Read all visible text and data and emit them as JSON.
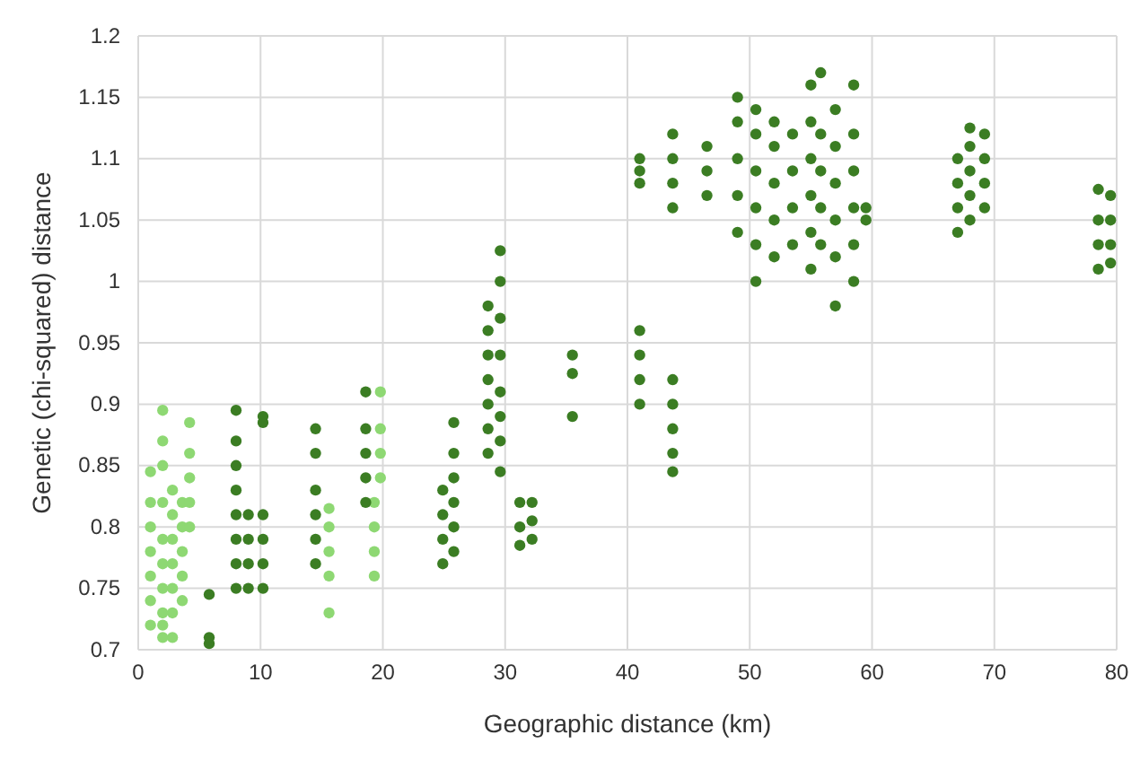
{
  "chart_data": {
    "type": "scatter",
    "xlabel": "Geographic distance (km)",
    "ylabel": "Genetic (chi-squared) distance",
    "xlim": [
      0,
      80
    ],
    "xticks": [
      0,
      10,
      20,
      30,
      40,
      50,
      60,
      70,
      80
    ],
    "ylim": [
      0.7,
      1.2
    ],
    "yticks": [
      0.7,
      0.75,
      0.8,
      0.85,
      0.9,
      0.95,
      1,
      1.05,
      1.1,
      1.15,
      1.2
    ],
    "grid": true,
    "marker": "circle",
    "legend": false,
    "series": [
      {
        "color": "#8ed873",
        "x": [
          1,
          1,
          1,
          1,
          1,
          1,
          1,
          2,
          2,
          2,
          2,
          2,
          2,
          2,
          2,
          2,
          2,
          2.8,
          2.8,
          2.8,
          2.8,
          2.8,
          2.8,
          2.8,
          3.6,
          3.6,
          3.6,
          3.6,
          3.6,
          4.2,
          4.2,
          4.2,
          4.2,
          4.2,
          15.6,
          15.6,
          15.6,
          15.6,
          15.6,
          19.3,
          19.3,
          19.3,
          19.3,
          19.8,
          19.8,
          19.8,
          19.8
        ],
        "values": [
          0.72,
          0.74,
          0.76,
          0.78,
          0.8,
          0.82,
          0.845,
          0.71,
          0.72,
          0.73,
          0.75,
          0.77,
          0.79,
          0.82,
          0.85,
          0.87,
          0.895,
          0.71,
          0.73,
          0.75,
          0.77,
          0.79,
          0.81,
          0.83,
          0.74,
          0.76,
          0.78,
          0.8,
          0.82,
          0.8,
          0.82,
          0.84,
          0.86,
          0.885,
          0.73,
          0.76,
          0.78,
          0.8,
          0.815,
          0.76,
          0.78,
          0.8,
          0.82,
          0.84,
          0.86,
          0.88,
          0.91
        ]
      },
      {
        "color": "#3b7d23",
        "x": [
          5.8,
          5.8,
          5.8,
          8,
          8,
          8,
          8,
          8,
          8,
          8,
          8,
          9,
          9,
          9,
          9,
          10.2,
          10.2,
          10.2,
          10.2,
          10.2,
          10.2,
          14.5,
          14.5,
          14.5,
          14.5,
          14.5,
          14.5,
          18.6,
          18.6,
          18.6,
          18.6,
          18.6,
          24.9,
          24.9,
          24.9,
          24.9,
          25.8,
          25.8,
          25.8,
          25.8,
          25.8,
          25.8,
          28.6,
          28.6,
          28.6,
          28.6,
          28.6,
          28.6,
          28.6,
          29.6,
          29.6,
          29.6,
          29.6,
          29.6,
          29.6,
          29.6,
          29.6,
          31.2,
          31.2,
          31.2,
          32.2,
          32.2,
          32.2,
          35.5,
          35.5,
          35.5,
          41,
          41,
          41,
          41,
          41,
          41,
          41,
          43.7,
          43.7,
          43.7,
          43.7,
          43.7,
          43.7,
          43.7,
          43.7,
          43.7,
          46.5,
          46.5,
          46.5,
          49,
          49,
          49,
          49,
          49,
          50.5,
          50.5,
          50.5,
          50.5,
          50.5,
          50.5,
          52,
          52,
          52,
          52,
          52,
          53.5,
          53.5,
          53.5,
          53.5,
          55,
          55,
          55,
          55,
          55,
          55,
          55.8,
          55.8,
          55.8,
          55.8,
          55.8,
          57,
          57,
          57,
          57,
          57,
          57,
          58.5,
          58.5,
          58.5,
          58.5,
          58.5,
          58.5,
          59.5,
          59.5,
          67,
          67,
          67,
          67,
          68,
          68,
          68,
          68,
          68,
          69.2,
          69.2,
          69.2,
          69.2,
          78.5,
          78.5,
          78.5,
          78.5,
          79.5,
          79.5,
          79.5,
          79.5
        ],
        "values": [
          0.705,
          0.71,
          0.745,
          0.75,
          0.77,
          0.79,
          0.81,
          0.83,
          0.85,
          0.87,
          0.895,
          0.75,
          0.77,
          0.79,
          0.81,
          0.75,
          0.77,
          0.79,
          0.81,
          0.885,
          0.89,
          0.77,
          0.79,
          0.81,
          0.83,
          0.86,
          0.88,
          0.82,
          0.84,
          0.86,
          0.88,
          0.91,
          0.77,
          0.79,
          0.81,
          0.83,
          0.78,
          0.8,
          0.82,
          0.84,
          0.86,
          0.885,
          0.86,
          0.88,
          0.9,
          0.92,
          0.94,
          0.96,
          0.98,
          0.845,
          0.87,
          0.89,
          0.91,
          0.94,
          0.97,
          1,
          1.025,
          0.785,
          0.8,
          0.82,
          0.79,
          0.805,
          0.82,
          0.89,
          0.925,
          0.94,
          0.9,
          0.92,
          0.94,
          0.96,
          1.08,
          1.09,
          1.1,
          0.845,
          0.86,
          0.88,
          0.9,
          0.92,
          1.06,
          1.08,
          1.1,
          1.12,
          1.07,
          1.09,
          1.11,
          1.04,
          1.07,
          1.1,
          1.13,
          1.15,
          1,
          1.03,
          1.06,
          1.09,
          1.12,
          1.14,
          1.02,
          1.05,
          1.08,
          1.11,
          1.13,
          1.03,
          1.06,
          1.09,
          1.12,
          1.01,
          1.04,
          1.07,
          1.1,
          1.13,
          1.16,
          1.03,
          1.06,
          1.09,
          1.12,
          1.17,
          0.98,
          1.02,
          1.05,
          1.08,
          1.11,
          1.14,
          1,
          1.03,
          1.06,
          1.09,
          1.12,
          1.16,
          1.05,
          1.06,
          1.04,
          1.06,
          1.08,
          1.1,
          1.05,
          1.07,
          1.09,
          1.11,
          1.125,
          1.06,
          1.08,
          1.1,
          1.12,
          1.01,
          1.03,
          1.05,
          1.075,
          1.015,
          1.03,
          1.05,
          1.07
        ]
      }
    ]
  }
}
